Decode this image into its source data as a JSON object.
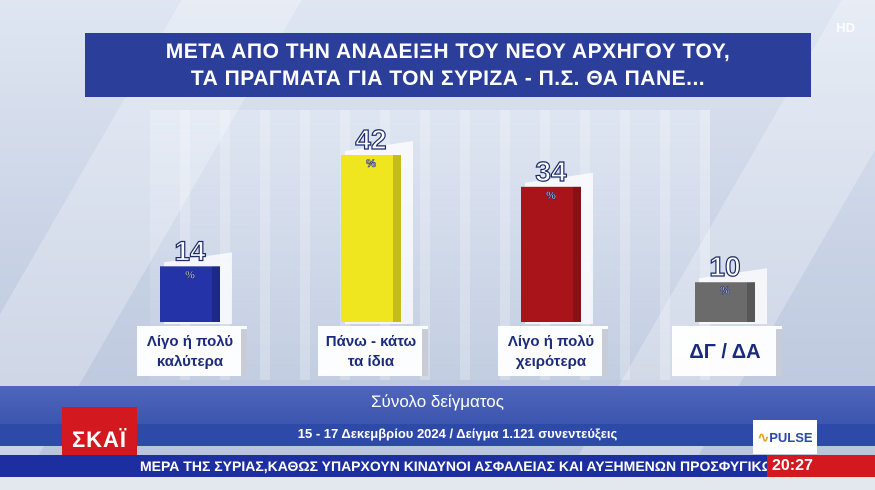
{
  "title": {
    "line1": "ΜΕΤΑ ΑΠΟ ΤΗΝ ΑΝΑΔΕΙΞΗ ΤΟΥ ΝΕΟΥ ΑΡΧΗΓΟΥ ΤΟΥ,",
    "line2": "ΤΑ ΠΡΑΓΜΑΤΑ ΓΙΑ ΤΟΝ ΣΥΡΙΖΑ - Π.Σ. ΘΑ ΠΑΝΕ..."
  },
  "channel_hd": "HD",
  "chart_data": {
    "type": "bar",
    "title": "ΜΕΤΑ ΑΠΟ ΤΗΝ ΑΝΑΔΕΙΞΗ ΤΟΥ ΝΕΟΥ ΑΡΧΗΓΟΥ ΤΟΥ, ΤΑ ΠΡΑΓΜΑΤΑ ΓΙΑ ΤΟΝ ΣΥΡΙΖΑ - Π.Σ. ΘΑ ΠΑΝΕ...",
    "categories": [
      [
        "Λίγο ή πολύ",
        "καλύτερα"
      ],
      [
        "Πάνω - κάτω",
        "τα ίδια"
      ],
      [
        "Λίγο ή πολύ",
        "χειρότερα"
      ],
      [
        "ΔΓ / ΔΑ"
      ]
    ],
    "values": [
      14,
      42,
      34,
      10
    ],
    "unit": "%",
    "colors": [
      "#2433a8",
      "#f0e620",
      "#a8141a",
      "#6b6b6b"
    ],
    "ylim": [
      0,
      42
    ],
    "grid": false,
    "legend": "none"
  },
  "footer": {
    "sample_label": "Σύνολο δείγματος",
    "survey_info": "15 - 17 Δεκεμβρίου 2024 / Δείγμα 1.121 συνεντεύξεις",
    "channel_logo": "ΣΚΑΪ",
    "pollster": "PULSE",
    "ticker": "ΜΕΡΑ ΤΗΣ ΣΥΡΙΑΣ,ΚΑΘΩΣ ΥΠΑΡΧΟΥΝ ΚΙΝΔΥΝΟΙ ΑΣΦΑΛΕΙΑΣ ΚΑΙ ΑΥΞΗΜΕΝΩΝ ΠΡΟΣΦΥΓΙΚΩΝ Ρ",
    "time": "20:27"
  }
}
